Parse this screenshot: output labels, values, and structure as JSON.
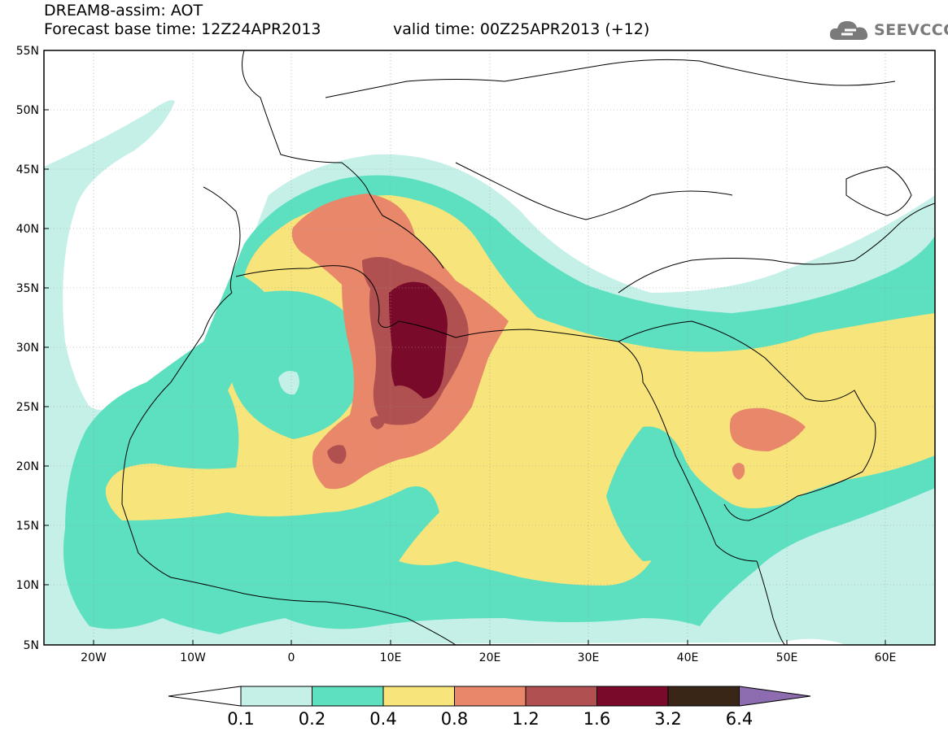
{
  "header": {
    "title": "DREAM8-assim: AOT",
    "base_time": "Forecast base time: 12Z24APR2013",
    "valid_time": "valid time: 00Z25APR2013 (+12)"
  },
  "logo": {
    "text": "SEEVCCC",
    "icon": "cloud-icon"
  },
  "axes": {
    "lat_ticks": [
      "55N",
      "50N",
      "45N",
      "40N",
      "35N",
      "30N",
      "25N",
      "20N",
      "15N",
      "10N",
      "5N"
    ],
    "lon_ticks": [
      "20W",
      "10W",
      "0",
      "10E",
      "20E",
      "30E",
      "40E",
      "50E",
      "60E"
    ]
  },
  "colorbar": {
    "labels": [
      "0.1",
      "0.2",
      "0.4",
      "0.8",
      "1.2",
      "1.6",
      "3.2",
      "6.4"
    ],
    "colors": [
      "#ffffff",
      "#c4f0e8",
      "#5ce0c0",
      "#f7e47a",
      "#e8876a",
      "#b05050",
      "#7a0a2a",
      "#3a2616",
      "#8d6cb0"
    ]
  }
}
